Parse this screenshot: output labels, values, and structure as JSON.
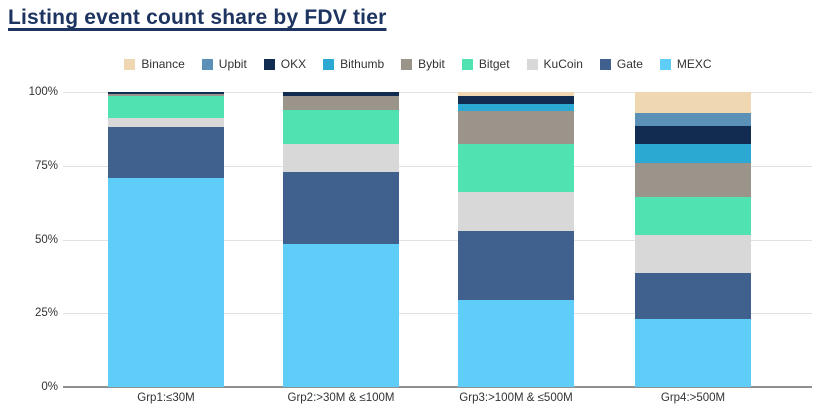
{
  "title": "Listing event count share by FDV tier",
  "title_color": "#1d3461",
  "chart_data": {
    "type": "bar",
    "stacked": true,
    "unit": "percent",
    "grid": true,
    "legend_position": "top",
    "ylim": [
      0,
      100
    ],
    "yticks": [
      "0%",
      "25%",
      "50%",
      "75%",
      "100%"
    ],
    "categories": [
      "Grp1:≤30M",
      "Grp2:>30M & ≤100M",
      "Grp3:>100M & ≤500M",
      "Grp4:>500M"
    ],
    "legend_order": [
      "Binance",
      "Upbit",
      "OKX",
      "Bithumb",
      "Bybit",
      "Bitget",
      "KuCoin",
      "Gate",
      "MEXC"
    ],
    "series": [
      {
        "name": "MEXC",
        "color": "#5ecdf7",
        "values": [
          71,
          48.5,
          29.5,
          23
        ]
      },
      {
        "name": "Gate",
        "color": "#40618e",
        "values": [
          17.2,
          24.5,
          23.5,
          15.5
        ]
      },
      {
        "name": "KuCoin",
        "color": "#d8d8d8",
        "values": [
          3.1,
          9.5,
          13,
          13
        ]
      },
      {
        "name": "Bitget",
        "color": "#50e3b1",
        "values": [
          7.2,
          11.5,
          16.5,
          13
        ]
      },
      {
        "name": "Bybit",
        "color": "#9b948a",
        "values": [
          0.8,
          4.5,
          11,
          11.5
        ]
      },
      {
        "name": "Bithumb",
        "color": "#2ca9d2",
        "values": [
          0,
          0,
          2.5,
          6.5
        ]
      },
      {
        "name": "OKX",
        "color": "#122b50",
        "values": [
          0.7,
          1.5,
          2.5,
          6
        ]
      },
      {
        "name": "Upbit",
        "color": "#5b91b6",
        "values": [
          0,
          0,
          0,
          4.5
        ]
      },
      {
        "name": "Binance",
        "color": "#efd7b1",
        "values": [
          0,
          0,
          1.5,
          7
        ]
      }
    ]
  }
}
